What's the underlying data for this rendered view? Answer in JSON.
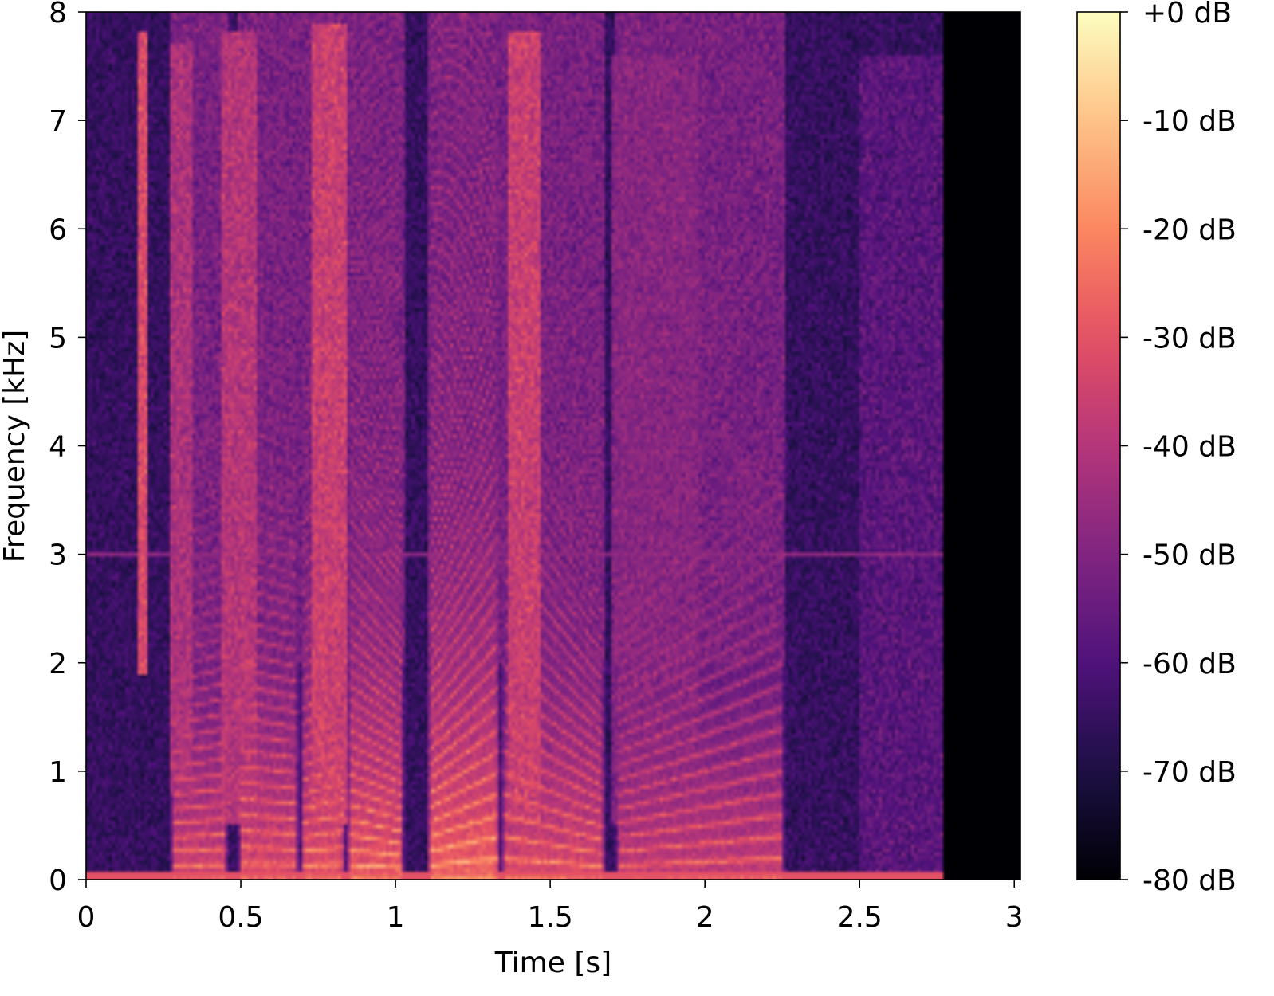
{
  "chart_data": {
    "type": "heatmap",
    "title": "",
    "xlabel": "Time [s]",
    "ylabel": "Frequency [kHz]",
    "xlim": [
      0,
      3.02
    ],
    "ylim": [
      0,
      8
    ],
    "x_ticks": [
      {
        "value": 0,
        "label": "0"
      },
      {
        "value": 0.5,
        "label": "0.5"
      },
      {
        "value": 1,
        "label": "1"
      },
      {
        "value": 1.5,
        "label": "1.5"
      },
      {
        "value": 2,
        "label": "2"
      },
      {
        "value": 2.5,
        "label": "2.5"
      },
      {
        "value": 3,
        "label": "3"
      }
    ],
    "y_ticks": [
      {
        "value": 0,
        "label": "0"
      },
      {
        "value": 1,
        "label": "1"
      },
      {
        "value": 2,
        "label": "2"
      },
      {
        "value": 3,
        "label": "3"
      },
      {
        "value": 4,
        "label": "4"
      },
      {
        "value": 5,
        "label": "5"
      },
      {
        "value": 6,
        "label": "6"
      },
      {
        "value": 7,
        "label": "7"
      },
      {
        "value": 8,
        "label": "8"
      }
    ],
    "colorbar": {
      "colormap": "magma",
      "range": [
        -80,
        0
      ],
      "ticks": [
        {
          "value": 0,
          "label": "+0 dB"
        },
        {
          "value": -10,
          "label": "-10 dB"
        },
        {
          "value": -20,
          "label": "-20 dB"
        },
        {
          "value": -30,
          "label": "-30 dB"
        },
        {
          "value": -40,
          "label": "-40 dB"
        },
        {
          "value": -50,
          "label": "-50 dB"
        },
        {
          "value": -60,
          "label": "-60 dB"
        },
        {
          "value": -70,
          "label": "-70 dB"
        },
        {
          "value": -80,
          "label": "-80 dB"
        }
      ]
    },
    "signal_end_s": 2.77,
    "floor_db": -80,
    "noise_db": -65,
    "tonal_line": {
      "freq_khz": 3.0,
      "db": -48
    },
    "segments": [
      {
        "t0": 0.27,
        "t1": 0.46,
        "f0_khz": 0.13,
        "f0_end_khz": 0.14,
        "peak_db": -20
      },
      {
        "t0": 0.49,
        "t1": 0.69,
        "f0_khz": 0.15,
        "f0_end_khz": 0.14,
        "peak_db": -18
      },
      {
        "t0": 0.69,
        "t1": 0.84,
        "f0_khz": 0.13,
        "f0_end_khz": 0.15,
        "peak_db": -16
      },
      {
        "t0": 0.84,
        "t1": 1.03,
        "f0_khz": 0.14,
        "f0_end_khz": 0.11,
        "peak_db": -14
      },
      {
        "t0": 1.1,
        "t1": 1.34,
        "f0_khz": 0.13,
        "f0_end_khz": 0.2,
        "peak_db": -12
      },
      {
        "t0": 1.34,
        "t1": 1.68,
        "f0_khz": 0.2,
        "f0_end_khz": 0.12,
        "peak_db": -18
      },
      {
        "t0": 1.71,
        "t1": 2.26,
        "f0_khz": 0.13,
        "f0_end_khz": 0.2,
        "peak_db": -22
      }
    ],
    "fricatives": [
      {
        "t0": 0.17,
        "t1": 0.2,
        "fmin_khz": 1.9,
        "fmax_khz": 7.8,
        "db": -32
      },
      {
        "t0": 0.27,
        "t1": 0.34,
        "fmin_khz": 0.8,
        "fmax_khz": 7.7,
        "db": -42
      },
      {
        "t0": 0.44,
        "t1": 0.55,
        "fmin_khz": 0.5,
        "fmax_khz": 7.8,
        "db": -40
      },
      {
        "t0": 0.73,
        "t1": 0.84,
        "fmin_khz": 0.5,
        "fmax_khz": 7.9,
        "db": -36
      },
      {
        "t0": 1.36,
        "t1": 1.47,
        "fmin_khz": 0.5,
        "fmax_khz": 7.8,
        "db": -36
      },
      {
        "t0": 1.7,
        "t1": 1.98,
        "fmin_khz": 0.5,
        "fmax_khz": 7.6,
        "db": -50
      },
      {
        "t0": 2.5,
        "t1": 2.77,
        "fmin_khz": 0.0,
        "fmax_khz": 7.6,
        "db": -58
      }
    ]
  }
}
